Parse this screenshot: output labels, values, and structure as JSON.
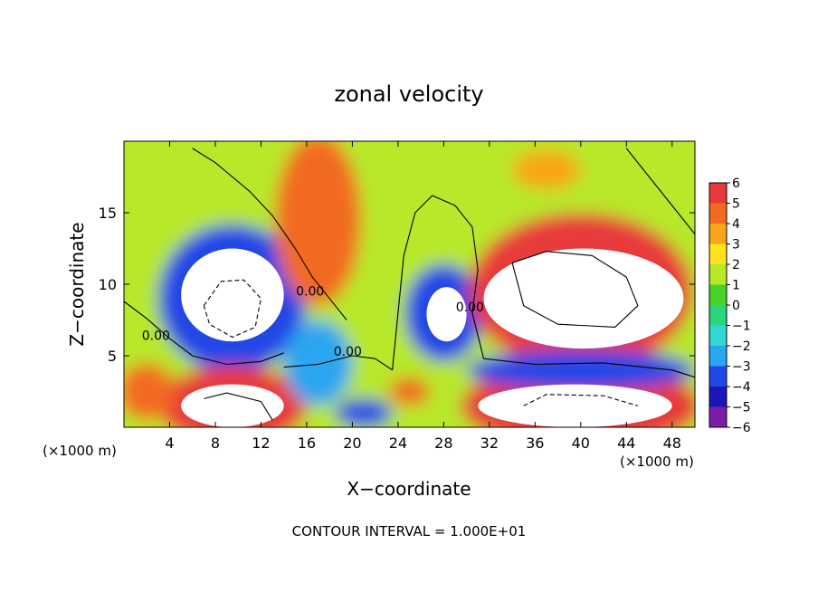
{
  "chart_data": {
    "type": "heatmap",
    "title": "zonal velocity",
    "xlabel": "X−coordinate",
    "ylabel": "Z−coordinate",
    "x_unit": "(×1000 m)",
    "z_unit": "(×1000 m)",
    "xlim": [
      0,
      50
    ],
    "ylim": [
      0,
      20
    ],
    "x_ticks": [
      4,
      8,
      12,
      16,
      20,
      24,
      28,
      32,
      36,
      40,
      44,
      48
    ],
    "x_tick_labels": [
      "4",
      "8",
      "12",
      "16",
      "20",
      "24",
      "28",
      "32",
      "36",
      "40",
      "44",
      "48"
    ],
    "y_ticks": [
      5,
      10,
      15
    ],
    "y_tick_labels": [
      "5",
      "10",
      "15"
    ],
    "colorbar": {
      "min": -6,
      "max": 6,
      "levels": [
        6,
        5,
        4,
        3,
        2,
        1,
        0,
        -1,
        -2,
        -3,
        -4,
        -5,
        -6
      ],
      "labels": [
        "6",
        "5",
        "4",
        "3",
        "2",
        "1",
        "0",
        "−1",
        "−2",
        "−3",
        "−4",
        "−5",
        "−6"
      ],
      "overflow_color": "#ffffff"
    },
    "contour_labels": [
      {
        "text": "0.00",
        "x": 2.8,
        "z": 6.1
      },
      {
        "text": "0.00",
        "x": 16.3,
        "z": 9.2
      },
      {
        "text": "0.00",
        "x": 19.6,
        "z": 5.0
      },
      {
        "text": "0.00",
        "x": 30.3,
        "z": 8.1
      }
    ],
    "features": [
      {
        "z_range": [
          6.0,
          12.5
        ],
        "x_range": [
          5,
          14
        ],
        "value": -8
      },
      {
        "z_range": [
          6.0,
          9.8
        ],
        "x_range": [
          26.5,
          30
        ],
        "value": -8
      },
      {
        "z_range": [
          5.5,
          12.5
        ],
        "x_range": [
          31.5,
          49
        ],
        "value": 9
      },
      {
        "z_range": [
          0,
          3
        ],
        "x_range": [
          5,
          14
        ],
        "value": 8
      },
      {
        "z_range": [
          0,
          3
        ],
        "x_range": [
          31,
          48
        ],
        "value": 8
      },
      {
        "z_range": [
          10,
          19
        ],
        "x_range": [
          13,
          21
        ],
        "value": 4
      }
    ]
  },
  "footer": {
    "contour_interval": "CONTOUR INTERVAL = 1.000E+01"
  }
}
